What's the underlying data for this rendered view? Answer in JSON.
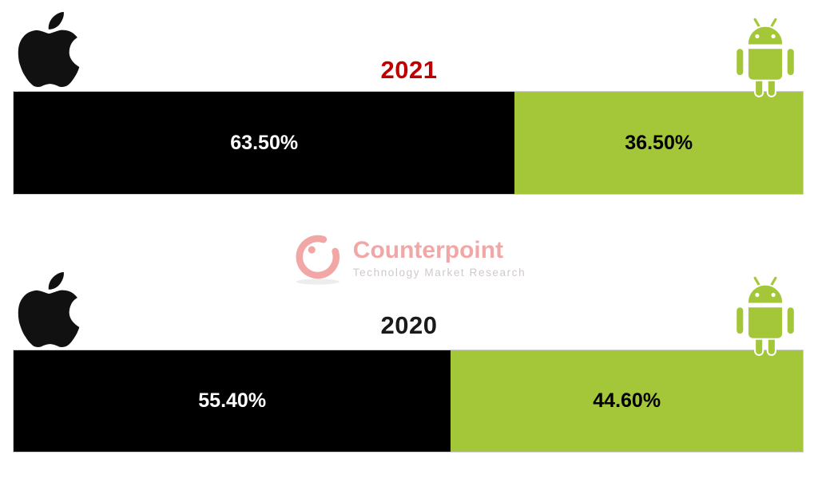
{
  "page": {
    "background": "#FFFFFF"
  },
  "colors": {
    "apple_black": "#000000",
    "android_green": "#A4C639",
    "year_2021_red": "#C00000",
    "year_2020_black": "#1A1A1A",
    "bar_border_gray": "#CFCFCF",
    "label_on_black": "#FFFFFF",
    "label_on_green": "#000000",
    "watermark_pink": "#F2A3A3",
    "watermark_tagline_gray": "#CFC6C6"
  },
  "watermark": {
    "brand": "Counterpoint",
    "tagline": "Technology Market Research"
  },
  "sections": [
    {
      "year": "2021",
      "year_color": "#C00000",
      "apple_share_pct": 63.5,
      "android_share_pct": 36.5,
      "apple_share_label": "63.50%",
      "android_share_label": "36.50%"
    },
    {
      "year": "2020",
      "year_color": "#1A1A1A",
      "apple_share_pct": 55.4,
      "android_share_pct": 44.6,
      "apple_share_label": "55.40%",
      "android_share_label": "44.60%"
    }
  ],
  "chart_data": {
    "type": "bar",
    "orientation": "horizontal",
    "stacked": true,
    "categories": [
      "2021",
      "2020"
    ],
    "series": [
      {
        "name": "Apple iOS",
        "color": "#000000",
        "values": [
          63.5,
          55.4
        ]
      },
      {
        "name": "Android",
        "color": "#A4C639",
        "values": [
          36.5,
          44.6
        ]
      }
    ],
    "value_labels": [
      [
        "63.50%",
        "36.50%"
      ],
      [
        "55.40%",
        "44.60%"
      ]
    ],
    "xlim": [
      0,
      100
    ],
    "title": "",
    "legend": "brand icons: Apple logo at left end, Android robot at right end of each bar",
    "grid": false,
    "source_watermark": "Counterpoint Technology Market Research"
  }
}
